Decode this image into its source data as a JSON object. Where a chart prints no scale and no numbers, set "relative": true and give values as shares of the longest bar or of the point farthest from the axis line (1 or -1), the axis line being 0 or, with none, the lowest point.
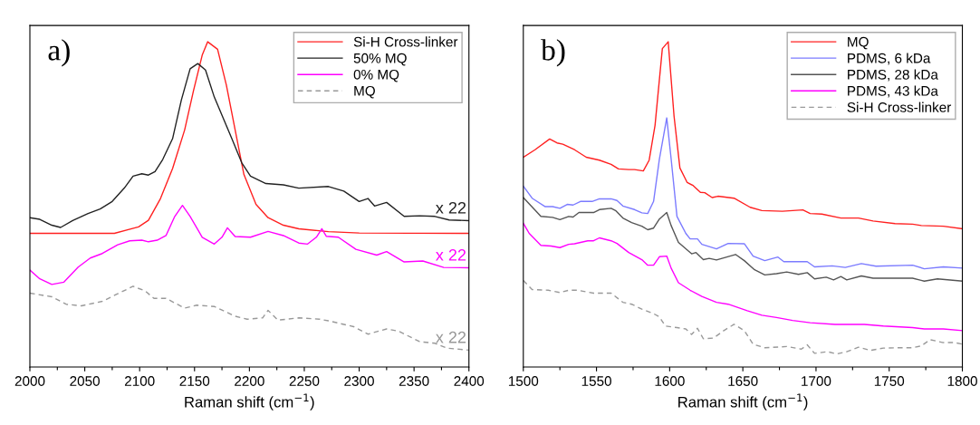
{
  "chart_data": [
    {
      "type": "line",
      "relative": true,
      "xlabel": "Raman shift (cm$^{−1}$)",
      "xlim": [
        2000,
        2400
      ],
      "xticks": [
        2000,
        {
          "value": 2025,
          "label": null
        },
        2050,
        {
          "value": 2075,
          "label": null
        },
        2100,
        {
          "value": 2125,
          "label": null
        },
        2150,
        {
          "value": 2175,
          "label": null
        },
        2200,
        {
          "value": 2225,
          "label": null
        },
        2250,
        {
          "value": 2275,
          "label": null
        },
        2300,
        {
          "value": 2325,
          "label": null
        },
        2350,
        {
          "value": 2375,
          "label": null
        },
        2400
      ],
      "tick_labels": "x",
      "grid": false,
      "legend": "top right",
      "line_style": "solid",
      "marker": "none",
      "annotations": [
        "a)",
        "x 22",
        "x 22",
        "x 22"
      ],
      "series": [
        {
          "name": "Si-H Cross-linker",
          "color": "#ff2020",
          "x": [
            2000,
            2077,
            2099,
            2108,
            2119,
            2130,
            2141,
            2149,
            2157,
            2162,
            2171,
            2179,
            2187,
            2195,
            2206,
            2217,
            2231,
            2245,
            2272,
            2300,
            2400
          ],
          "values": [
            0.411,
            0.411,
            0.431,
            0.451,
            0.518,
            0.61,
            0.729,
            0.849,
            0.959,
            1.0,
            0.977,
            0.867,
            0.729,
            0.592,
            0.5,
            0.459,
            0.436,
            0.425,
            0.416,
            0.412,
            0.411
          ]
        },
        {
          "name": "50% MQ",
          "color": "#222222",
          "x": [
            2000,
            2009,
            2020,
            2028,
            2039,
            2053,
            2064,
            2075,
            2086,
            2094,
            2102,
            2108,
            2114,
            2121,
            2130,
            2138,
            2146,
            2153,
            2160,
            2168,
            2176,
            2184,
            2193,
            2201,
            2215,
            2231,
            2245,
            2272,
            2286,
            2300,
            2308,
            2314,
            2325,
            2341,
            2355,
            2369,
            2382,
            2400
          ],
          "values": [
            0.459,
            0.454,
            0.436,
            0.429,
            0.45,
            0.472,
            0.486,
            0.509,
            0.55,
            0.587,
            0.594,
            0.59,
            0.601,
            0.638,
            0.702,
            0.821,
            0.917,
            0.933,
            0.913,
            0.83,
            0.766,
            0.702,
            0.628,
            0.587,
            0.564,
            0.56,
            0.55,
            0.555,
            0.541,
            0.509,
            0.518,
            0.495,
            0.506,
            0.463,
            0.465,
            0.463,
            0.452,
            0.45
          ]
        },
        {
          "name": "0% MQ",
          "color": "#ff00ff",
          "x": [
            2000,
            2009,
            2020,
            2031,
            2044,
            2055,
            2066,
            2080,
            2091,
            2102,
            2108,
            2116,
            2124,
            2132,
            2139,
            2146,
            2157,
            2168,
            2175,
            2180,
            2187,
            2201,
            2217,
            2231,
            2245,
            2253,
            2261,
            2266,
            2270,
            2281,
            2297,
            2316,
            2325,
            2341,
            2358,
            2377,
            2400
          ],
          "values": [
            0.298,
            0.271,
            0.254,
            0.261,
            0.307,
            0.335,
            0.349,
            0.376,
            0.388,
            0.39,
            0.385,
            0.39,
            0.404,
            0.463,
            0.497,
            0.463,
            0.399,
            0.378,
            0.399,
            0.428,
            0.401,
            0.399,
            0.417,
            0.404,
            0.381,
            0.378,
            0.399,
            0.425,
            0.402,
            0.399,
            0.362,
            0.344,
            0.355,
            0.323,
            0.326,
            0.306,
            0.305
          ]
        },
        {
          "name": "MQ",
          "color": "#999999",
          "line_style": "dashed",
          "x": [
            2000,
            2020,
            2033,
            2047,
            2066,
            2080,
            2094,
            2105,
            2113,
            2124,
            2141,
            2152,
            2168,
            2187,
            2198,
            2212,
            2217,
            2226,
            2245,
            2264,
            2272,
            2295,
            2308,
            2325,
            2336,
            2355,
            2369,
            2380,
            2400
          ],
          "values": [
            0.227,
            0.216,
            0.193,
            0.188,
            0.202,
            0.225,
            0.248,
            0.234,
            0.211,
            0.211,
            0.181,
            0.19,
            0.186,
            0.156,
            0.147,
            0.151,
            0.174,
            0.144,
            0.151,
            0.147,
            0.142,
            0.124,
            0.101,
            0.117,
            0.11,
            0.078,
            0.073,
            0.058,
            0.052
          ]
        }
      ]
    },
    {
      "type": "line",
      "relative": true,
      "xlabel": "Raman shift (cm$^{−1}$)",
      "xlim": [
        1500,
        1800
      ],
      "xticks": [
        1500,
        {
          "value": 1525,
          "label": null
        },
        1550,
        {
          "value": 1575,
          "label": null
        },
        1600,
        {
          "value": 1625,
          "label": null
        },
        1650,
        {
          "value": 1675,
          "label": null
        },
        1700,
        {
          "value": 1725,
          "label": null
        },
        1750,
        {
          "value": 1775,
          "label": null
        },
        1800
      ],
      "tick_labels": "x",
      "grid": false,
      "legend": "top right",
      "line_style": "solid",
      "marker": "none",
      "annotations": [
        "b)"
      ],
      "series": [
        {
          "name": "MQ",
          "color": "#ff2020",
          "x": [
            1500,
            1508,
            1518,
            1523,
            1527,
            1535,
            1543,
            1552,
            1560,
            1565,
            1572,
            1576,
            1582,
            1586,
            1590,
            1595,
            1599,
            1603,
            1607,
            1612,
            1616,
            1621,
            1624,
            1629,
            1633,
            1644,
            1655,
            1663,
            1677,
            1691,
            1696,
            1704,
            1717,
            1729,
            1739,
            1754,
            1766,
            1772,
            1787,
            1800
          ],
          "values": [
            0.645,
            0.668,
            0.701,
            0.689,
            0.685,
            0.668,
            0.645,
            0.636,
            0.623,
            0.609,
            0.607,
            0.607,
            0.603,
            0.636,
            0.743,
            0.979,
            1.0,
            0.771,
            0.612,
            0.567,
            0.558,
            0.537,
            0.536,
            0.521,
            0.525,
            0.519,
            0.491,
            0.481,
            0.479,
            0.483,
            0.472,
            0.47,
            0.458,
            0.458,
            0.449,
            0.441,
            0.439,
            0.435,
            0.433,
            0.425
          ]
        },
        {
          "name": "PDMS, 6 kDa",
          "color": "#7b7bff",
          "x": [
            1500,
            1506,
            1515,
            1520,
            1525,
            1530,
            1534,
            1539,
            1547,
            1552,
            1560,
            1564,
            1568,
            1576,
            1581,
            1585,
            1589,
            1593,
            1598,
            1601,
            1605,
            1611,
            1614,
            1619,
            1622,
            1632,
            1640,
            1651,
            1657,
            1665,
            1674,
            1678,
            1694,
            1699,
            1711,
            1720,
            1731,
            1741,
            1766,
            1774,
            1787,
            1800
          ],
          "values": [
            0.556,
            0.519,
            0.493,
            0.493,
            0.488,
            0.5,
            0.498,
            0.509,
            0.509,
            0.517,
            0.517,
            0.512,
            0.495,
            0.484,
            0.474,
            0.472,
            0.509,
            0.64,
            0.766,
            0.64,
            0.463,
            0.411,
            0.394,
            0.394,
            0.377,
            0.363,
            0.38,
            0.379,
            0.341,
            0.327,
            0.338,
            0.324,
            0.324,
            0.308,
            0.311,
            0.306,
            0.318,
            0.31,
            0.313,
            0.302,
            0.308,
            0.304
          ]
        },
        {
          "name": "PDMS, 28 kDa",
          "color": "#555555",
          "x": [
            1500,
            1512,
            1520,
            1525,
            1531,
            1534,
            1538,
            1548,
            1552,
            1560,
            1563,
            1568,
            1574,
            1581,
            1585,
            1589,
            1593,
            1598,
            1601,
            1606,
            1615,
            1618,
            1623,
            1627,
            1632,
            1645,
            1651,
            1658,
            1665,
            1673,
            1680,
            1688,
            1694,
            1699,
            1707,
            1712,
            1717,
            1721,
            1731,
            1739,
            1766,
            1774,
            1783,
            1800
          ],
          "values": [
            0.521,
            0.463,
            0.46,
            0.453,
            0.463,
            0.461,
            0.475,
            0.475,
            0.484,
            0.488,
            0.481,
            0.458,
            0.444,
            0.433,
            0.422,
            0.427,
            0.455,
            0.475,
            0.435,
            0.383,
            0.348,
            0.352,
            0.33,
            0.334,
            0.329,
            0.346,
            0.327,
            0.299,
            0.283,
            0.287,
            0.292,
            0.285,
            0.29,
            0.271,
            0.276,
            0.268,
            0.278,
            0.268,
            0.28,
            0.273,
            0.273,
            0.264,
            0.271,
            0.264
          ]
        },
        {
          "name": "PDMS, 43 kDa",
          "color": "#ff00ff",
          "x": [
            1500,
            1504,
            1512,
            1519,
            1525,
            1531,
            1535,
            1544,
            1548,
            1552,
            1560,
            1564,
            1572,
            1581,
            1585,
            1589,
            1593,
            1598,
            1601,
            1606,
            1614,
            1622,
            1632,
            1640,
            1653,
            1663,
            1673,
            1684,
            1696,
            1713,
            1733,
            1746,
            1766,
            1774,
            1787,
            1800
          ],
          "values": [
            0.442,
            0.411,
            0.374,
            0.372,
            0.367,
            0.377,
            0.379,
            0.388,
            0.388,
            0.397,
            0.388,
            0.38,
            0.352,
            0.33,
            0.313,
            0.313,
            0.339,
            0.341,
            0.304,
            0.259,
            0.236,
            0.217,
            0.199,
            0.193,
            0.173,
            0.159,
            0.152,
            0.143,
            0.136,
            0.131,
            0.131,
            0.126,
            0.121,
            0.117,
            0.117,
            0.112
          ]
        },
        {
          "name": "Si-H Cross-linker",
          "color": "#999999",
          "line_style": "dashed",
          "x": [
            1500,
            1506,
            1517,
            1525,
            1531,
            1537,
            1548,
            1560,
            1568,
            1574,
            1581,
            1589,
            1593,
            1597,
            1605,
            1611,
            1615,
            1619,
            1623,
            1630,
            1637,
            1644,
            1651,
            1657,
            1665,
            1680,
            1690,
            1694,
            1699,
            1708,
            1714,
            1721,
            1729,
            1737,
            1746,
            1756,
            1766,
            1772,
            1778,
            1787,
            1795,
            1800
          ],
          "values": [
            0.266,
            0.238,
            0.236,
            0.229,
            0.236,
            0.236,
            0.227,
            0.227,
            0.199,
            0.193,
            0.178,
            0.164,
            0.154,
            0.126,
            0.121,
            0.117,
            0.1,
            0.119,
            0.087,
            0.089,
            0.112,
            0.131,
            0.112,
            0.07,
            0.059,
            0.063,
            0.055,
            0.068,
            0.042,
            0.047,
            0.04,
            0.047,
            0.061,
            0.051,
            0.058,
            0.059,
            0.059,
            0.065,
            0.084,
            0.075,
            0.075,
            0.07
          ]
        }
      ]
    }
  ]
}
